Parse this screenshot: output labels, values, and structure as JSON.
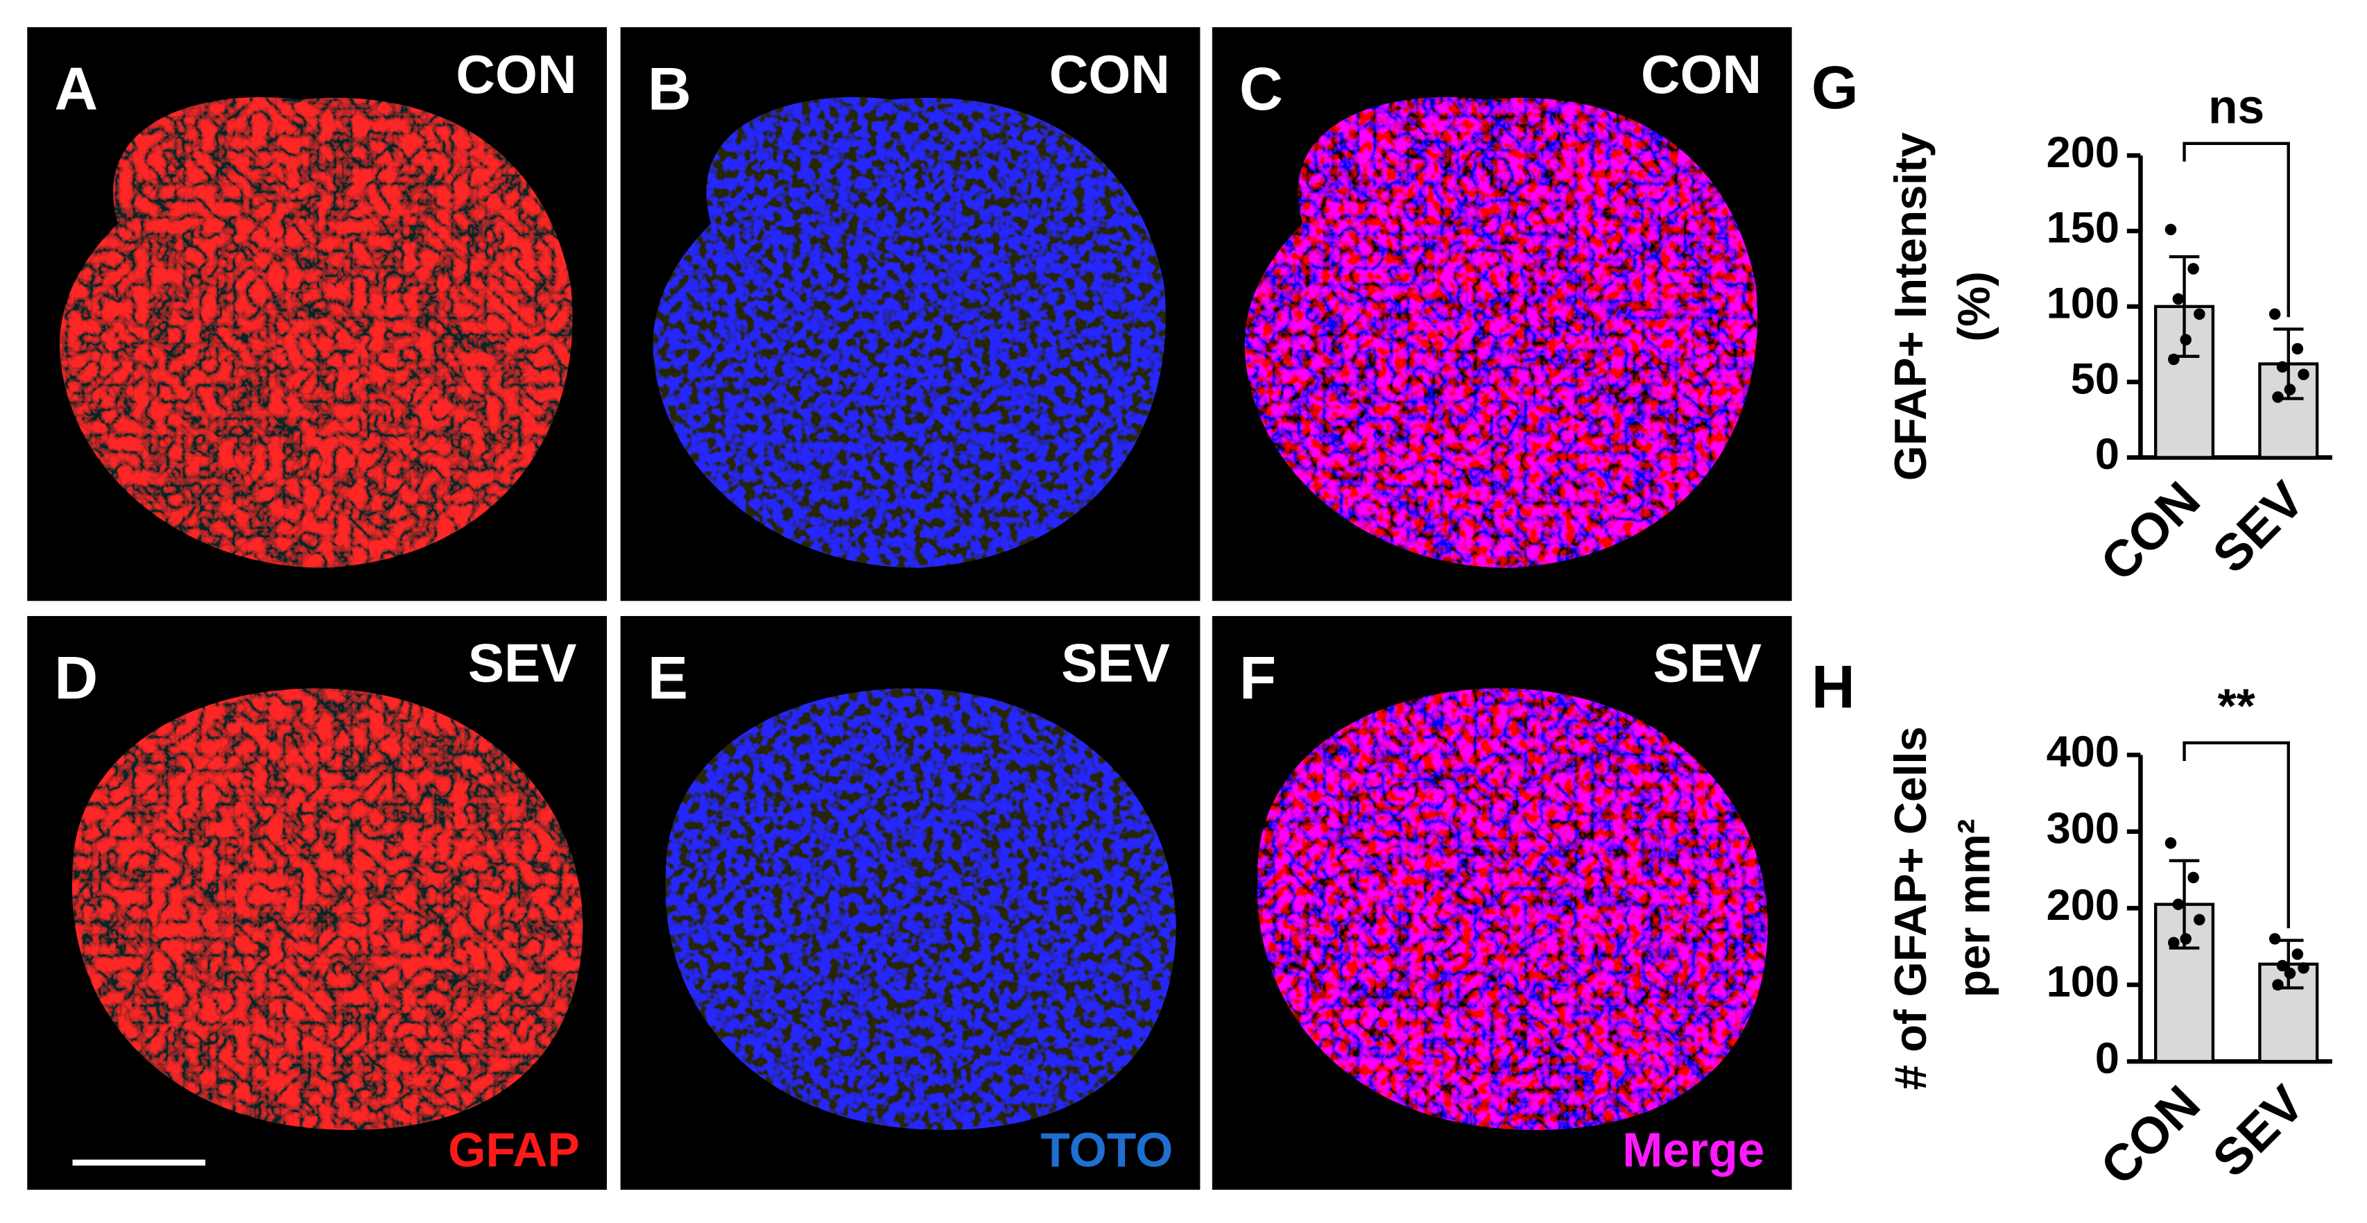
{
  "panels": [
    {
      "letter": "A",
      "condition": "CON"
    },
    {
      "letter": "B",
      "condition": "CON"
    },
    {
      "letter": "C",
      "condition": "CON"
    },
    {
      "letter": "D",
      "condition": "SEV",
      "stain": "GFAP"
    },
    {
      "letter": "E",
      "condition": "SEV",
      "stain": "TOTO"
    },
    {
      "letter": "F",
      "condition": "SEV",
      "stain": "Merge"
    }
  ],
  "chart_data": [
    {
      "type": "bar",
      "panel": "G",
      "ylabel": [
        "GFAP+ Intensity",
        "(%)"
      ],
      "categories": [
        "CON",
        "SEV"
      ],
      "values": [
        100,
        62
      ],
      "errors": [
        33,
        23
      ],
      "points": [
        [
          151,
          125,
          105,
          95,
          78,
          65
        ],
        [
          95,
          72,
          60,
          55,
          45,
          40
        ]
      ],
      "color": "#d9d9d9",
      "ylim": [
        0,
        200
      ],
      "yticks": [
        0,
        50,
        100,
        150,
        200
      ],
      "significance": "ns"
    },
    {
      "type": "bar",
      "panel": "H",
      "ylabel": [
        "# of GFAP+ Cells",
        "per mm²"
      ],
      "categories": [
        "CON",
        "SEV"
      ],
      "values": [
        205,
        127
      ],
      "errors": [
        57,
        31
      ],
      "points": [
        [
          285,
          240,
          205,
          185,
          160,
          155
        ],
        [
          160,
          140,
          125,
          122,
          115,
          100
        ]
      ],
      "color": "#d9d9d9",
      "ylim": [
        0,
        400
      ],
      "yticks": [
        0,
        100,
        200,
        300,
        400
      ],
      "significance": "**"
    }
  ]
}
